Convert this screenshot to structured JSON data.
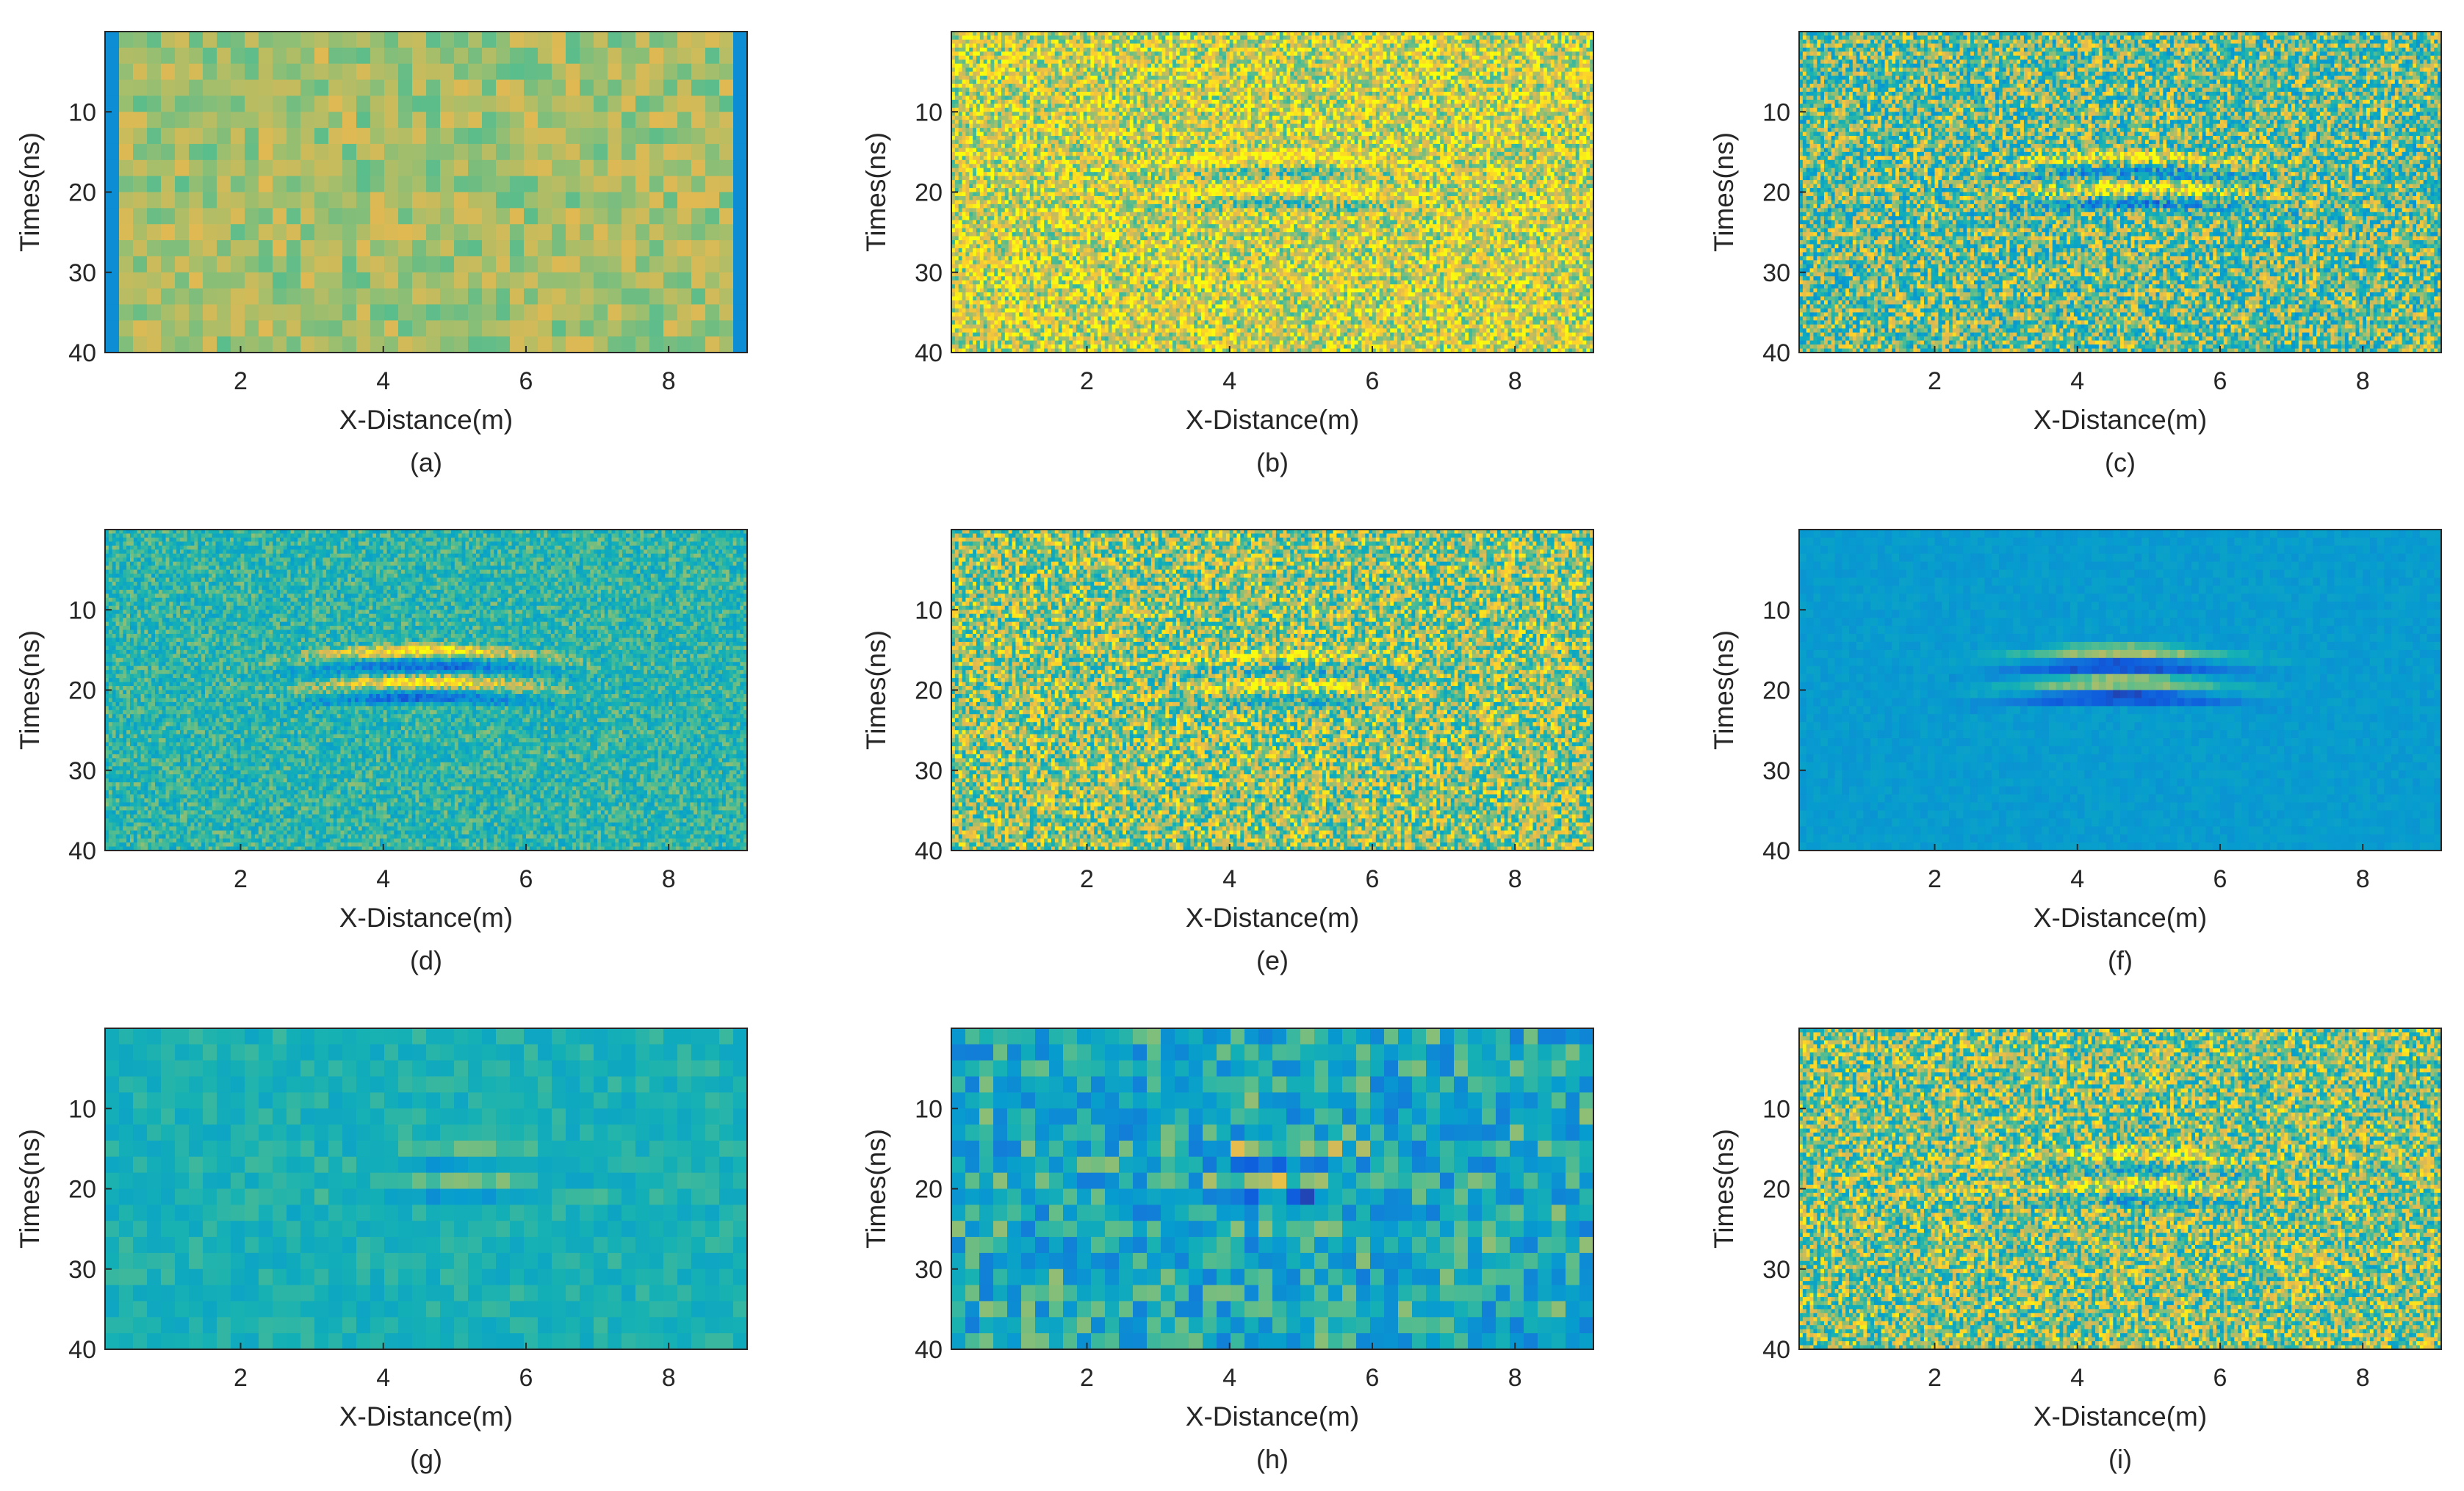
{
  "chart_data": [
    {
      "type": "heatmap",
      "panel": "(a)",
      "xlabel": "X-Distance(m)",
      "ylabel": "Times(ns)",
      "xlim": [
        0.1,
        9.1
      ],
      "ylim": [
        0,
        40
      ],
      "y_reversed": true,
      "xticks": [
        2,
        4,
        6,
        8
      ],
      "yticks": [
        10,
        20,
        30,
        40
      ],
      "colormap": "parula",
      "grid": {
        "rows": 20,
        "cols": 46
      },
      "background_value": 0.74,
      "noise_amplitude": 0.08,
      "edge_value": 0.35,
      "seed": 11,
      "features": []
    },
    {
      "type": "heatmap",
      "panel": "(b)",
      "xlabel": "X-Distance(m)",
      "ylabel": "Times(ns)",
      "xlim": [
        0.1,
        9.1
      ],
      "ylim": [
        0,
        40
      ],
      "y_reversed": true,
      "xticks": [
        2,
        4,
        6,
        8
      ],
      "yticks": [
        10,
        20,
        30,
        40
      ],
      "colormap": "parula",
      "grid": {
        "rows": 80,
        "cols": 180
      },
      "background_value": 0.82,
      "noise_amplitude": 0.22,
      "edge_value": null,
      "seed": 23,
      "features": [
        {
          "center_x": 4.8,
          "center_t": 18.5,
          "amplitude": 0.2
        }
      ]
    },
    {
      "type": "heatmap",
      "panel": "(c)",
      "xlabel": "X-Distance(m)",
      "ylabel": "Times(ns)",
      "xlim": [
        0.1,
        9.1
      ],
      "ylim": [
        0,
        40
      ],
      "y_reversed": true,
      "xticks": [
        2,
        4,
        6,
        8
      ],
      "yticks": [
        10,
        20,
        30,
        40
      ],
      "colormap": "parula",
      "grid": {
        "rows": 80,
        "cols": 180
      },
      "background_value": 0.66,
      "noise_amplitude": 0.28,
      "edge_value": null,
      "seed": 37,
      "features": [
        {
          "center_x": 4.8,
          "center_t": 18.5,
          "amplitude": 0.3
        }
      ]
    },
    {
      "type": "heatmap",
      "panel": "(d)",
      "xlabel": "X-Distance(m)",
      "ylabel": "Times(ns)",
      "xlim": [
        0.1,
        9.1
      ],
      "ylim": [
        0,
        40
      ],
      "y_reversed": true,
      "xticks": [
        2,
        4,
        6,
        8
      ],
      "yticks": [
        10,
        20,
        30,
        40
      ],
      "colormap": "parula",
      "grid": {
        "rows": 80,
        "cols": 180
      },
      "background_value": 0.58,
      "noise_amplitude": 0.14,
      "edge_value": null,
      "seed": 41,
      "features": [
        {
          "center_x": 4.6,
          "center_t": 18,
          "amplitude": 0.38
        }
      ]
    },
    {
      "type": "heatmap",
      "panel": "(e)",
      "xlabel": "X-Distance(m)",
      "ylabel": "Times(ns)",
      "xlim": [
        0.1,
        9.1
      ],
      "ylim": [
        0,
        40
      ],
      "y_reversed": true,
      "xticks": [
        2,
        4,
        6,
        8
      ],
      "yticks": [
        10,
        20,
        30,
        40
      ],
      "colormap": "parula",
      "grid": {
        "rows": 80,
        "cols": 180
      },
      "background_value": 0.72,
      "noise_amplitude": 0.26,
      "edge_value": null,
      "seed": 53,
      "features": [
        {
          "center_x": 4.8,
          "center_t": 18.5,
          "amplitude": 0.18
        }
      ]
    },
    {
      "type": "heatmap",
      "panel": "(f)",
      "xlabel": "X-Distance(m)",
      "ylabel": "Times(ns)",
      "xlim": [
        0.1,
        9.1
      ],
      "ylim": [
        0,
        40
      ],
      "y_reversed": true,
      "xticks": [
        2,
        4,
        6,
        8
      ],
      "yticks": [
        10,
        20,
        30,
        40
      ],
      "colormap": "parula",
      "grid": {
        "rows": 40,
        "cols": 90
      },
      "background_value": 0.42,
      "noise_amplitude": 0.04,
      "edge_value": null,
      "seed": 67,
      "features": [
        {
          "center_x": 4.6,
          "center_t": 18,
          "amplitude": 0.42
        }
      ]
    },
    {
      "type": "heatmap",
      "panel": "(g)",
      "xlabel": "X-Distance(m)",
      "ylabel": "Times(ns)",
      "xlim": [
        0.1,
        9.1
      ],
      "ylim": [
        0,
        40
      ],
      "y_reversed": true,
      "xticks": [
        2,
        4,
        6,
        8
      ],
      "yticks": [
        10,
        20,
        30,
        40
      ],
      "colormap": "parula",
      "grid": {
        "rows": 20,
        "cols": 46
      },
      "background_value": 0.55,
      "noise_amplitude": 0.07,
      "edge_value": null,
      "seed": 71,
      "features": [
        {
          "center_x": 5.0,
          "center_t": 18.5,
          "amplitude": 0.2
        }
      ]
    },
    {
      "type": "heatmap",
      "panel": "(h)",
      "xlabel": "X-Distance(m)",
      "ylabel": "Times(ns)",
      "xlim": [
        0.1,
        9.1
      ],
      "ylim": [
        0,
        40
      ],
      "y_reversed": true,
      "xticks": [
        2,
        4,
        6,
        8
      ],
      "yticks": [
        10,
        20,
        30,
        40
      ],
      "colormap": "parula",
      "grid": {
        "rows": 20,
        "cols": 46
      },
      "background_value": 0.5,
      "noise_amplitude": 0.22,
      "edge_value": null,
      "seed": 83,
      "features": [
        {
          "center_x": 4.8,
          "center_t": 18.5,
          "amplitude": 0.3
        }
      ]
    },
    {
      "type": "heatmap",
      "panel": "(i)",
      "xlabel": "X-Distance(m)",
      "ylabel": "Times(ns)",
      "xlim": [
        0.1,
        9.1
      ],
      "ylim": [
        0,
        40
      ],
      "y_reversed": true,
      "xticks": [
        2,
        4,
        6,
        8
      ],
      "yticks": [
        10,
        20,
        30,
        40
      ],
      "colormap": "parula",
      "grid": {
        "rows": 80,
        "cols": 180
      },
      "background_value": 0.7,
      "noise_amplitude": 0.27,
      "edge_value": null,
      "seed": 97,
      "features": [
        {
          "center_x": 4.8,
          "center_t": 18.5,
          "amplitude": 0.22
        }
      ]
    }
  ]
}
